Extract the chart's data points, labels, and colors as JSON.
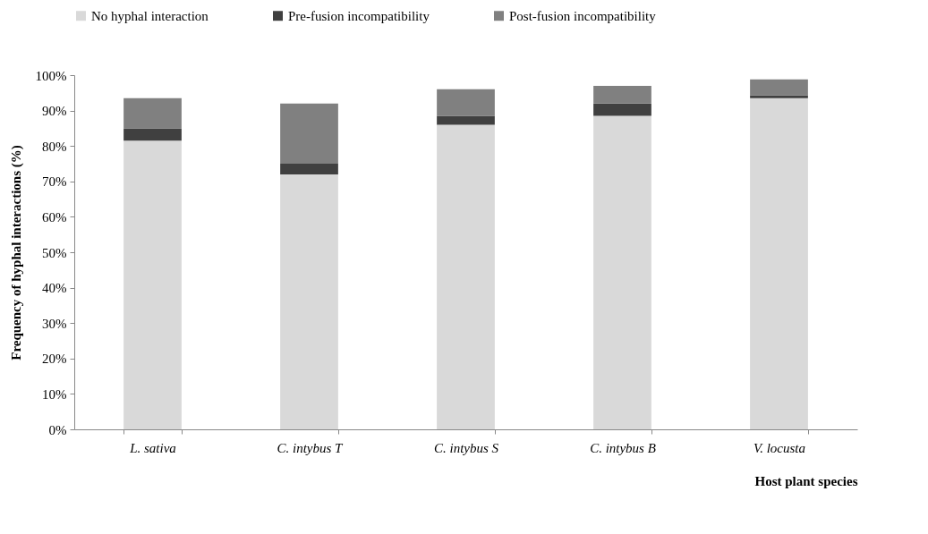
{
  "chart_data": {
    "type": "bar",
    "stacked": true,
    "xlabel": "Host plant species",
    "ylabel": "Frequency of hyphal interactions (%)",
    "categories": [
      "L. sativa",
      "C. intybus T",
      "C. intybus S",
      "C. intybus B",
      "V. locusta"
    ],
    "series": [
      {
        "name": "No hyphal interaction",
        "color": "#d9d9d9",
        "values": [
          81.5,
          72,
          86,
          88.5,
          93.5
        ]
      },
      {
        "name": "Pre-fusion incompatibility",
        "color": "#404040",
        "values": [
          3.5,
          3,
          2.5,
          3.5,
          0.8
        ]
      },
      {
        "name": "Post-fusion incompatibility",
        "color": "#808080",
        "values": [
          8.5,
          17,
          7.5,
          5,
          4.5
        ]
      }
    ],
    "ylim": [
      0,
      100
    ],
    "yticks": [
      {
        "value": 0,
        "label": "0%"
      },
      {
        "value": 10,
        "label": "10%"
      },
      {
        "value": 20,
        "label": "20%"
      },
      {
        "value": 30,
        "label": "30%"
      },
      {
        "value": 40,
        "label": "40%"
      },
      {
        "value": 50,
        "label": "50%"
      },
      {
        "value": 60,
        "label": "60%"
      },
      {
        "value": 70,
        "label": "70%"
      },
      {
        "value": 80,
        "label": "80%"
      },
      {
        "value": 90,
        "label": "90%"
      },
      {
        "value": 100,
        "label": "100%"
      }
    ],
    "grid": false,
    "legend": "top"
  }
}
